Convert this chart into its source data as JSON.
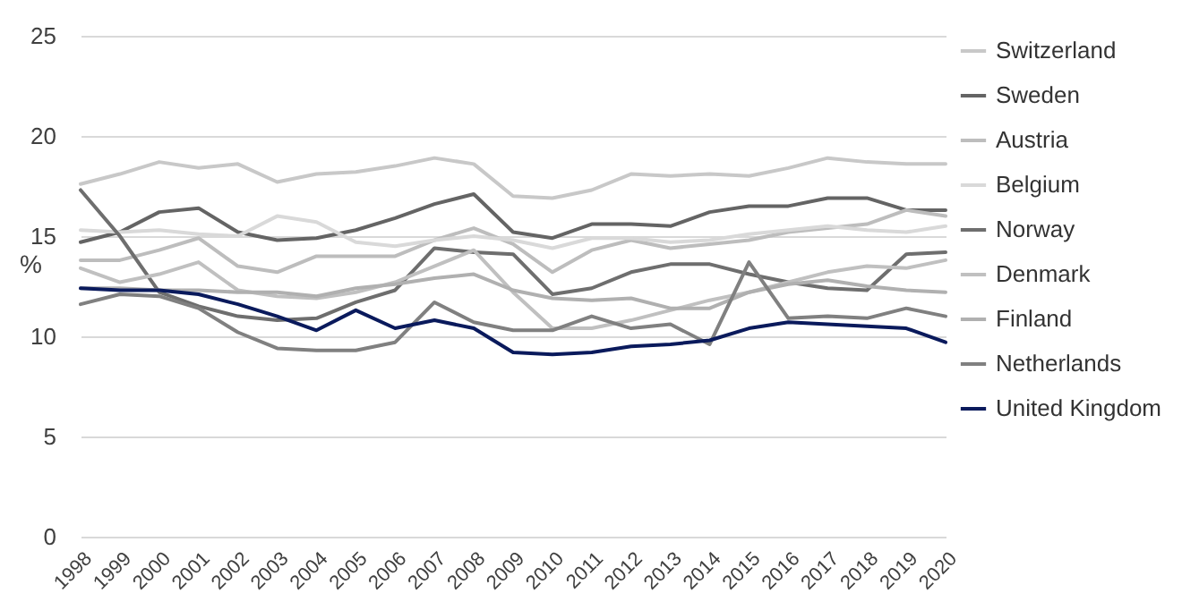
{
  "chart_data": {
    "type": "line",
    "ylabel": "%",
    "categories": [
      "1998",
      "1999",
      "2000",
      "2001",
      "2002",
      "2003",
      "2004",
      "2005",
      "2006",
      "2007",
      "2008",
      "2009",
      "2010",
      "2011",
      "2012",
      "2013",
      "2014",
      "2015",
      "2016",
      "2017",
      "2018",
      "2019",
      "2020"
    ],
    "series": [
      {
        "name": "Switzerland",
        "color": "#c8c8c8",
        "values": [
          17.6,
          18.1,
          18.7,
          18.4,
          18.6,
          17.7,
          18.1,
          18.2,
          18.5,
          18.9,
          18.6,
          17.0,
          16.9,
          17.3,
          18.1,
          18.0,
          18.1,
          18.0,
          18.4,
          18.9,
          18.7,
          18.6,
          18.6
        ]
      },
      {
        "name": "Sweden",
        "color": "#646464",
        "values": [
          14.7,
          15.2,
          16.2,
          16.4,
          15.2,
          14.8,
          14.9,
          15.3,
          15.9,
          16.6,
          17.1,
          15.2,
          14.9,
          15.6,
          15.6,
          15.5,
          16.2,
          16.5,
          16.5,
          16.9,
          16.9,
          16.3,
          16.3
        ]
      },
      {
        "name": "Austria",
        "color": "#bdbdbd",
        "values": [
          13.8,
          13.8,
          14.3,
          14.9,
          13.5,
          13.2,
          14.0,
          14.0,
          14.0,
          14.8,
          15.4,
          14.6,
          13.2,
          14.3,
          14.8,
          14.4,
          14.6,
          14.8,
          15.2,
          15.4,
          15.6,
          16.3,
          16.0
        ]
      },
      {
        "name": "Belgium",
        "color": "#d9d9d9",
        "values": [
          15.3,
          15.2,
          15.3,
          15.1,
          15.0,
          16.0,
          15.7,
          14.7,
          14.5,
          14.8,
          15.0,
          14.8,
          14.4,
          14.9,
          14.9,
          14.7,
          14.8,
          15.1,
          15.3,
          15.5,
          15.3,
          15.2,
          15.5
        ]
      },
      {
        "name": "Norway",
        "color": "#6e6e6e",
        "values": [
          17.3,
          15.0,
          12.2,
          11.5,
          11.0,
          10.8,
          10.9,
          11.7,
          12.3,
          14.4,
          14.2,
          14.1,
          12.1,
          12.4,
          13.2,
          13.6,
          13.6,
          13.1,
          12.7,
          12.4,
          12.3,
          14.1,
          14.2
        ]
      },
      {
        "name": "Denmark",
        "color": "#c0c0c0",
        "values": [
          13.4,
          12.7,
          13.1,
          13.7,
          12.3,
          12.0,
          11.9,
          12.2,
          12.7,
          13.5,
          14.3,
          12.2,
          10.4,
          10.4,
          10.8,
          11.3,
          11.8,
          12.2,
          12.7,
          13.2,
          13.5,
          13.4,
          13.8
        ]
      },
      {
        "name": "Finland",
        "color": "#b0b0b0",
        "values": [
          12.4,
          12.4,
          12.3,
          12.3,
          12.2,
          12.2,
          12.0,
          12.4,
          12.6,
          12.9,
          13.1,
          12.3,
          11.9,
          11.8,
          11.9,
          11.4,
          11.4,
          12.2,
          12.6,
          12.8,
          12.5,
          12.3,
          12.2
        ]
      },
      {
        "name": "Netherlands",
        "color": "#808080",
        "values": [
          11.6,
          12.1,
          12.0,
          11.4,
          10.2,
          9.4,
          9.3,
          9.3,
          9.7,
          11.7,
          10.7,
          10.3,
          10.3,
          11.0,
          10.4,
          10.6,
          9.6,
          13.7,
          10.9,
          11.0,
          10.9,
          11.4,
          11.0
        ]
      },
      {
        "name": "United Kingdom",
        "color": "#0a1a5c",
        "values": [
          12.4,
          12.3,
          12.3,
          12.1,
          11.6,
          11.0,
          10.3,
          11.3,
          10.4,
          10.8,
          10.4,
          9.2,
          9.1,
          9.2,
          9.5,
          9.6,
          9.8,
          10.4,
          10.7,
          10.6,
          10.5,
          10.4,
          9.7
        ]
      }
    ],
    "ylim": [
      0,
      25
    ],
    "yticks": [
      0,
      5,
      10,
      15,
      20,
      25
    ],
    "grid": "y",
    "legend": "right",
    "line_style": "solid"
  }
}
